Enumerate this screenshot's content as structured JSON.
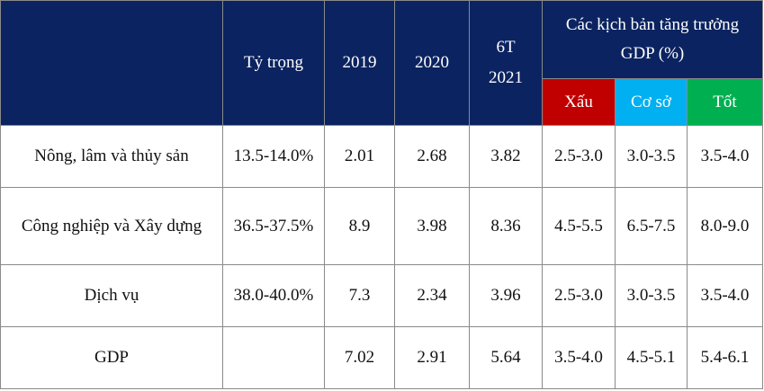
{
  "header": {
    "sector": "",
    "share": "Tỷ trọng",
    "y2019": "2019",
    "y2020": "2020",
    "y6t_line1": "6T",
    "y6t_line2": "2021",
    "scenarios_title": "Các kịch bản tăng trưởng GDP (%)",
    "bad": "Xấu",
    "base": "Cơ sở",
    "good": "Tốt"
  },
  "colors": {
    "header_bg": "#0b2360",
    "bad_bg": "#c00000",
    "base_bg": "#00b0f0",
    "good_bg": "#00b050"
  },
  "rows": [
    {
      "sector": "Nông, lâm và thủy sản",
      "share": "13.5-14.0%",
      "y2019": "2.01",
      "y2020": "2.68",
      "y6t2021": "3.82",
      "bad": "2.5-3.0",
      "base": "3.0-3.5",
      "good": "3.5-4.0"
    },
    {
      "sector": "Công nghiệp và Xây dựng",
      "share": "36.5-37.5%",
      "y2019": "8.9",
      "y2020": "3.98",
      "y6t2021": "8.36",
      "bad": "4.5-5.5",
      "base": "6.5-7.5",
      "good": "8.0-9.0"
    },
    {
      "sector": "Dịch vụ",
      "share": "38.0-40.0%",
      "y2019": "7.3",
      "y2020": "2.34",
      "y6t2021": "3.96",
      "bad": "2.5-3.0",
      "base": "3.0-3.5",
      "good": "3.5-4.0"
    },
    {
      "sector": "GDP",
      "share": "",
      "y2019": "7.02",
      "y2020": "2.91",
      "y6t2021": "5.64",
      "bad": "3.5-4.0",
      "base": "4.5-5.1",
      "good": "5.4-6.1"
    }
  ]
}
